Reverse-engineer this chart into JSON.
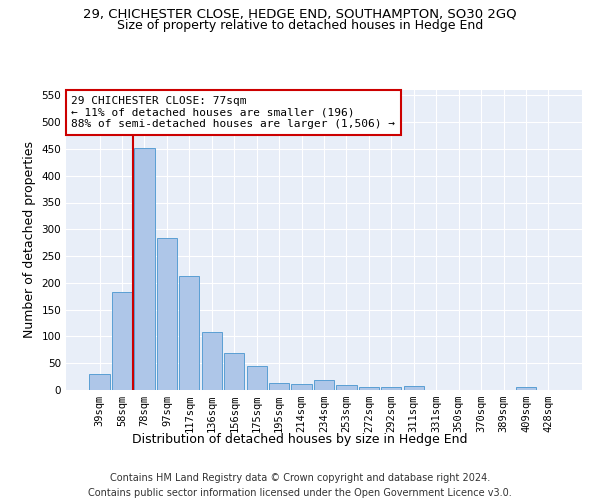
{
  "title_line1": "29, CHICHESTER CLOSE, HEDGE END, SOUTHAMPTON, SO30 2GQ",
  "title_line2": "Size of property relative to detached houses in Hedge End",
  "xlabel": "Distribution of detached houses by size in Hedge End",
  "ylabel": "Number of detached properties",
  "footer_line1": "Contains HM Land Registry data © Crown copyright and database right 2024.",
  "footer_line2": "Contains public sector information licensed under the Open Government Licence v3.0.",
  "annotation_line1": "29 CHICHESTER CLOSE: 77sqm",
  "annotation_line2": "← 11% of detached houses are smaller (196)",
  "annotation_line3": "88% of semi-detached houses are larger (1,506) →",
  "bar_labels": [
    "39sqm",
    "58sqm",
    "78sqm",
    "97sqm",
    "117sqm",
    "136sqm",
    "156sqm",
    "175sqm",
    "195sqm",
    "214sqm",
    "234sqm",
    "253sqm",
    "272sqm",
    "292sqm",
    "311sqm",
    "331sqm",
    "350sqm",
    "370sqm",
    "389sqm",
    "409sqm",
    "428sqm"
  ],
  "bar_values": [
    30,
    183,
    452,
    283,
    212,
    109,
    70,
    45,
    14,
    11,
    19,
    10,
    5,
    5,
    7,
    0,
    0,
    0,
    0,
    5,
    0
  ],
  "bar_color": "#aec6e8",
  "bar_edgecolor": "#5a9fd4",
  "vline_color": "#cc0000",
  "ylim": [
    0,
    560
  ],
  "yticks": [
    0,
    50,
    100,
    150,
    200,
    250,
    300,
    350,
    400,
    450,
    500,
    550
  ],
  "background_color": "#e8eef8",
  "grid_color": "#ffffff",
  "title_fontsize": 9.5,
  "subtitle_fontsize": 9,
  "axis_label_fontsize": 9,
  "tick_fontsize": 7.5,
  "footer_fontsize": 7,
  "annotation_fontsize": 8
}
